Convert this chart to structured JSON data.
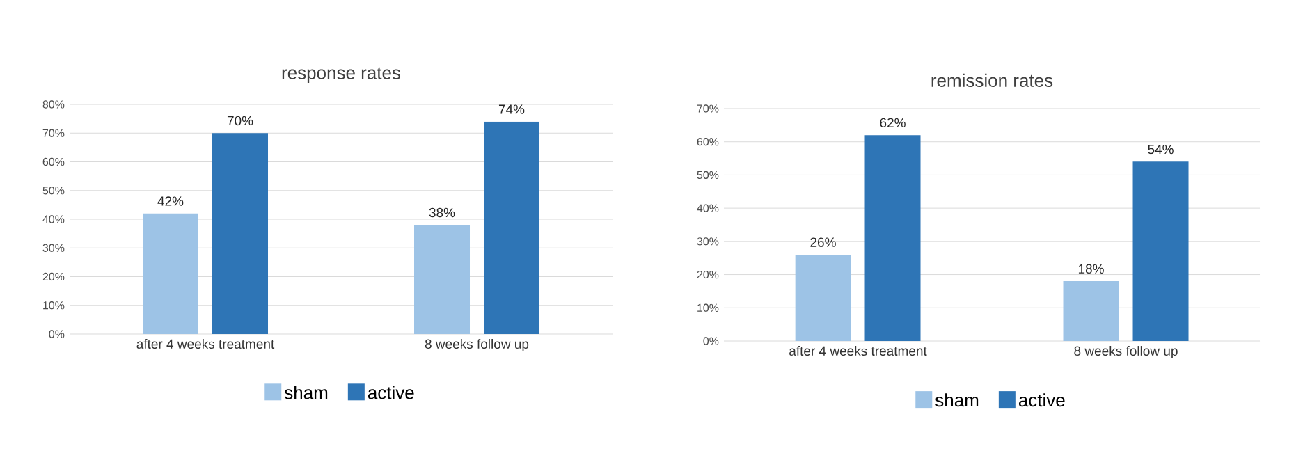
{
  "chart_data": [
    {
      "type": "bar",
      "title": "response rates",
      "categories": [
        "after 4 weeks treatment",
        "8 weeks follow up"
      ],
      "series": [
        {
          "name": "sham",
          "color": "#9dc3e6",
          "values": [
            42,
            38
          ],
          "value_labels": [
            "42%",
            "38%"
          ]
        },
        {
          "name": "active",
          "color": "#2e75b6",
          "values": [
            70,
            74
          ],
          "value_labels": [
            "70%",
            "74%"
          ]
        }
      ],
      "ylim": [
        0,
        80
      ],
      "yticks": [
        {
          "value": 0,
          "label": "0%"
        },
        {
          "value": 10,
          "label": "10%"
        },
        {
          "value": 20,
          "label": "20%"
        },
        {
          "value": 30,
          "label": "30%"
        },
        {
          "value": 40,
          "label": "40%"
        },
        {
          "value": 50,
          "label": "50%"
        },
        {
          "value": 60,
          "label": "60%"
        },
        {
          "value": 70,
          "label": "70%"
        },
        {
          "value": 80,
          "label": "80%"
        }
      ],
      "grid": "y",
      "legend": "bottom"
    },
    {
      "type": "bar",
      "title": "remission rates",
      "categories": [
        "after 4 weeks treatment",
        "8 weeks follow up"
      ],
      "series": [
        {
          "name": "sham",
          "color": "#9dc3e6",
          "values": [
            26,
            18
          ],
          "value_labels": [
            "26%",
            "18%"
          ]
        },
        {
          "name": "active",
          "color": "#2e75b6",
          "values": [
            62,
            54
          ],
          "value_labels": [
            "62%",
            "54%"
          ]
        }
      ],
      "ylim": [
        0,
        70
      ],
      "yticks": [
        {
          "value": 0,
          "label": "0%"
        },
        {
          "value": 10,
          "label": "10%"
        },
        {
          "value": 20,
          "label": "20%"
        },
        {
          "value": 30,
          "label": "30%"
        },
        {
          "value": 40,
          "label": "40%"
        },
        {
          "value": 50,
          "label": "50%"
        },
        {
          "value": 60,
          "label": "60%"
        },
        {
          "value": 70,
          "label": "70%"
        }
      ],
      "grid": "y",
      "legend": "bottom"
    }
  ]
}
